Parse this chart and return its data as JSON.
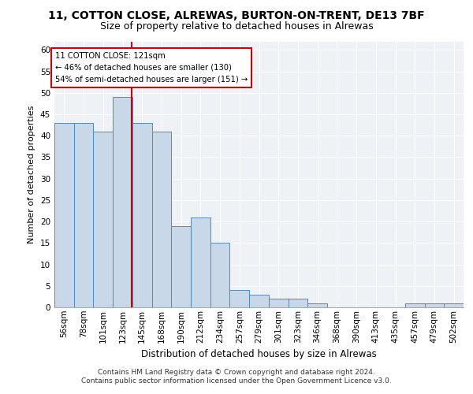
{
  "title1": "11, COTTON CLOSE, ALREWAS, BURTON-ON-TRENT, DE13 7BF",
  "title2": "Size of property relative to detached houses in Alrewas",
  "xlabel": "Distribution of detached houses by size in Alrewas",
  "ylabel": "Number of detached properties",
  "categories": [
    "56sqm",
    "78sqm",
    "101sqm",
    "123sqm",
    "145sqm",
    "168sqm",
    "190sqm",
    "212sqm",
    "234sqm",
    "257sqm",
    "279sqm",
    "301sqm",
    "323sqm",
    "346sqm",
    "368sqm",
    "390sqm",
    "413sqm",
    "435sqm",
    "457sqm",
    "479sqm",
    "502sqm"
  ],
  "values": [
    43,
    43,
    41,
    49,
    43,
    41,
    19,
    21,
    15,
    4,
    3,
    2,
    2,
    1,
    0,
    0,
    0,
    0,
    1,
    1,
    1
  ],
  "bar_color": "#c8d8e8",
  "bar_edge_color": "#5588bb",
  "ylim": [
    0,
    62
  ],
  "yticks": [
    0,
    5,
    10,
    15,
    20,
    25,
    30,
    35,
    40,
    45,
    50,
    55,
    60
  ],
  "annotation_text": "11 COTTON CLOSE: 121sqm",
  "annotation_line1": "← 46% of detached houses are smaller (130)",
  "annotation_line2": "54% of semi-detached houses are larger (151) →",
  "annotation_box_color": "#ffffff",
  "annotation_box_edge": "#cc0000",
  "footer_line1": "Contains HM Land Registry data © Crown copyright and database right 2024.",
  "footer_line2": "Contains public sector information licensed under the Open Government Licence v3.0.",
  "background_color": "#eef2f7",
  "grid_color": "#ffffff",
  "title1_fontsize": 10,
  "title2_fontsize": 9,
  "xlabel_fontsize": 8.5,
  "ylabel_fontsize": 8,
  "tick_fontsize": 7.5,
  "footer_fontsize": 6.5
}
